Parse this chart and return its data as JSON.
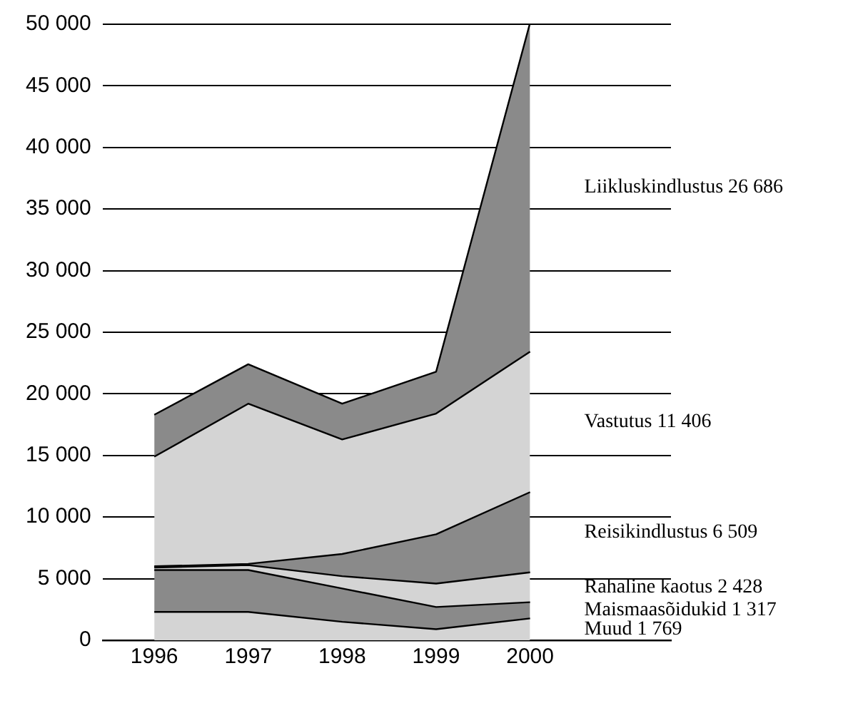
{
  "chart_data": {
    "type": "area",
    "stacked": true,
    "categories": [
      "1996",
      "1997",
      "1998",
      "1999",
      "2000"
    ],
    "ylim": [
      0,
      50000
    ],
    "yticks": [
      {
        "value": 0,
        "label": "0"
      },
      {
        "value": 5000,
        "label": "5 000"
      },
      {
        "value": 10000,
        "label": "10 000"
      },
      {
        "value": 15000,
        "label": "15 000"
      },
      {
        "value": 20000,
        "label": "20 000"
      },
      {
        "value": 25000,
        "label": "25 000"
      },
      {
        "value": 30000,
        "label": "30 000"
      },
      {
        "value": 35000,
        "label": "35 000"
      },
      {
        "value": 40000,
        "label": "40 000"
      },
      {
        "value": 45000,
        "label": "45 000"
      },
      {
        "value": 50000,
        "label": "50 000"
      }
    ],
    "grid": "y",
    "legend": false,
    "series": [
      {
        "name": "Muud",
        "color": "#d4d4d4",
        "values": [
          2300,
          2300,
          1500,
          900,
          1769
        ],
        "value_labels": [
          null,
          null,
          null,
          null,
          "1 769"
        ]
      },
      {
        "name": "Maismaasõidukid",
        "color": "#8a8a8a",
        "values": [
          3400,
          3400,
          2700,
          1800,
          1317
        ],
        "value_labels": [
          null,
          null,
          null,
          null,
          "1 317"
        ]
      },
      {
        "name": "Rahaline kaotus",
        "color": "#d4d4d4",
        "values": [
          200,
          400,
          1000,
          1900,
          2428
        ],
        "value_labels": [
          null,
          null,
          null,
          null,
          "2 428"
        ]
      },
      {
        "name": "Reisikindlustus",
        "color": "#8a8a8a",
        "values": [
          100,
          100,
          1800,
          4000,
          6509
        ],
        "value_labels": [
          null,
          null,
          null,
          null,
          "6 509"
        ]
      },
      {
        "name": "Vastutus",
        "color": "#d4d4d4",
        "values": [
          8900,
          13000,
          9300,
          9800,
          11406
        ],
        "value_labels": [
          null,
          null,
          null,
          null,
          "11 406"
        ]
      },
      {
        "name": "Liikluskindlustus",
        "color": "#8a8a8a",
        "values": [
          3400,
          3200,
          2900,
          3400,
          26686
        ],
        "value_labels": [
          null,
          null,
          null,
          null,
          "26 686"
        ]
      }
    ]
  }
}
